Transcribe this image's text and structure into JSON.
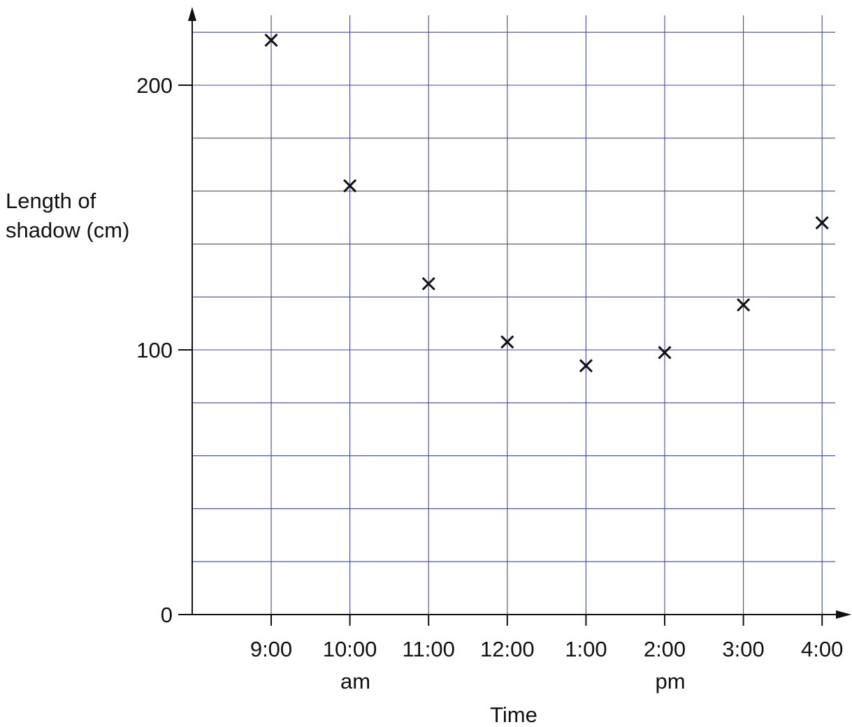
{
  "chart_data": {
    "type": "scatter",
    "title": "",
    "xlabel": "Time",
    "ylabel_lines": [
      "Length of",
      "shadow (cm)"
    ],
    "x_categories": [
      "9:00",
      "10:00",
      "11:00",
      "12:00",
      "1:00",
      "2:00",
      "3:00",
      "4:00"
    ],
    "x_period_labels": [
      {
        "text": "am",
        "under": "10:00"
      },
      {
        "text": "pm",
        "under": "2:00"
      }
    ],
    "y_ticks": [
      0,
      100,
      200
    ],
    "y_minor_step": 20,
    "ylim": [
      0,
      220
    ],
    "grid": true,
    "marker": "x",
    "points": [
      {
        "x": "9:00",
        "y": 217
      },
      {
        "x": "10:00",
        "y": 162
      },
      {
        "x": "11:00",
        "y": 125
      },
      {
        "x": "12:00",
        "y": 103
      },
      {
        "x": "1:00",
        "y": 94
      },
      {
        "x": "2:00",
        "y": 99
      },
      {
        "x": "3:00",
        "y": 117
      },
      {
        "x": "4:00",
        "y": 148
      }
    ],
    "colors": {
      "grid": "#3f4a9c",
      "axis": "#111111",
      "marker": "#111111"
    }
  }
}
